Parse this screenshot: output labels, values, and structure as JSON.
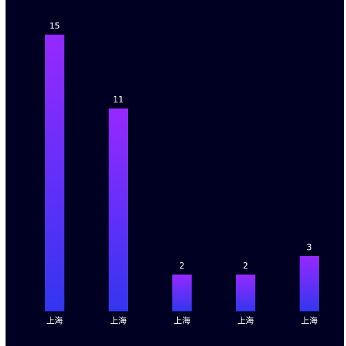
{
  "chart_data": {
    "type": "bar",
    "categories": [
      "上海",
      "上海",
      "上海",
      "上海",
      "上海"
    ],
    "values": [
      15,
      11,
      2,
      2,
      3
    ],
    "gradient": [
      "#9629ff",
      "#3336ef"
    ],
    "background": "#000022",
    "ylim": [
      0,
      15
    ]
  }
}
